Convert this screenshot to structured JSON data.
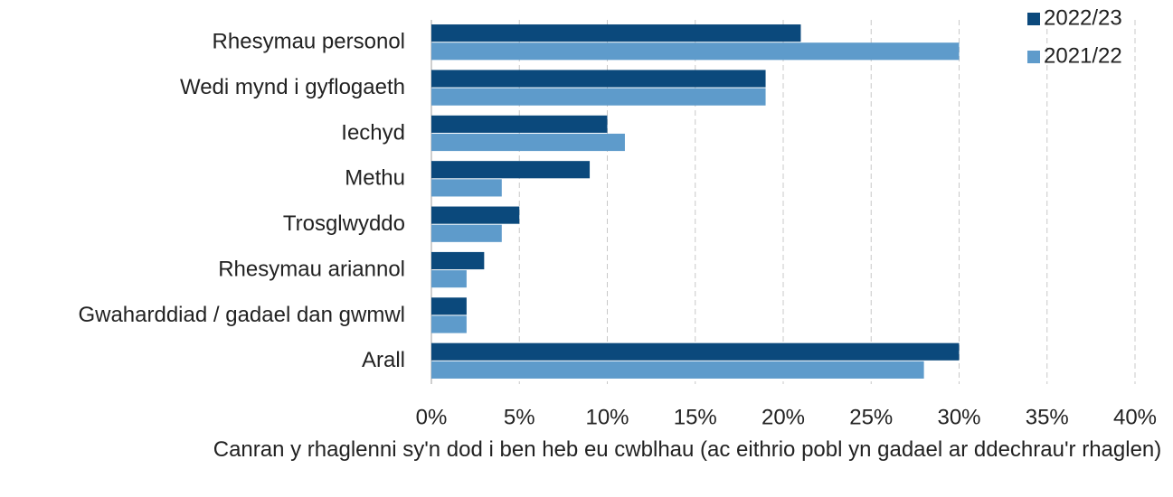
{
  "chart_data": {
    "type": "barh",
    "categories": [
      "Rhesymau personol",
      "Wedi mynd i gyflogaeth",
      "Iechyd",
      "Methu",
      "Trosglwyddo",
      "Rhesymau ariannol",
      "Gwaharddiad / gadael dan gwmwl",
      "Arall"
    ],
    "series": [
      {
        "name": "2022/23",
        "color": "#0b497c",
        "values": [
          21,
          19,
          10,
          9,
          5,
          3,
          2,
          30
        ]
      },
      {
        "name": "2021/22",
        "color": "#5e9bcb",
        "values": [
          30,
          19,
          11,
          4,
          4,
          2,
          2,
          28
        ]
      }
    ],
    "xlim": [
      0,
      40
    ],
    "xticks": [
      {
        "value": 0,
        "label": "0%"
      },
      {
        "value": 5,
        "label": "5%"
      },
      {
        "value": 10,
        "label": "10%"
      },
      {
        "value": 15,
        "label": "15%"
      },
      {
        "value": 20,
        "label": "20%"
      },
      {
        "value": 25,
        "label": "25%"
      },
      {
        "value": 30,
        "label": "30%"
      },
      {
        "value": 35,
        "label": "35%"
      },
      {
        "value": 40,
        "label": "40%"
      }
    ],
    "xlabel": "Canran y rhaglenni sy'n dod i ben heb eu cwblhau (ac eithrio pobl yn gadael ar ddechrau'r rhaglen)",
    "grid": true,
    "legend": "top-right"
  }
}
